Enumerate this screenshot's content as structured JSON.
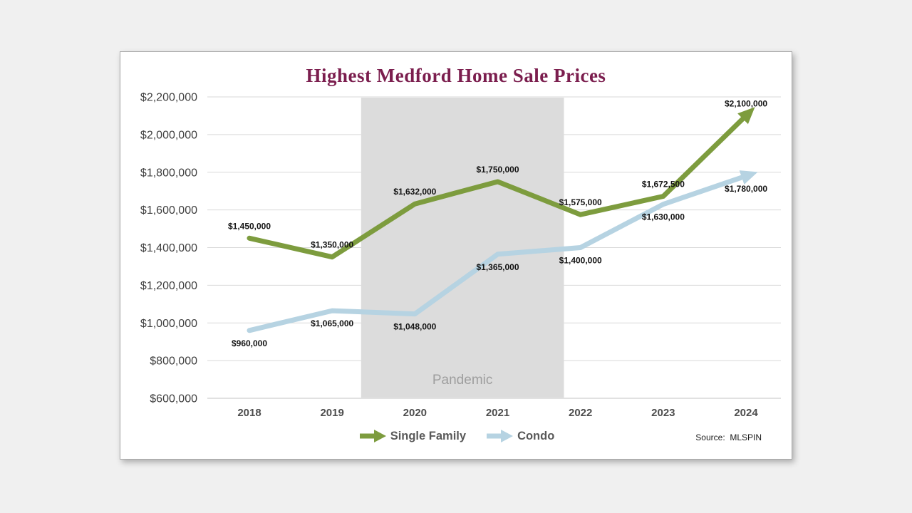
{
  "chart_data": {
    "type": "line",
    "title": "Highest Medford Home Sale Prices",
    "xlabel": "",
    "ylabel": "",
    "x": [
      2018,
      2019,
      2020,
      2021,
      2022,
      2023,
      2024
    ],
    "series": [
      {
        "name": "Single Family",
        "color": "#7d9c3e",
        "values": [
          1450000,
          1350000,
          1632000,
          1750000,
          1575000,
          1672500,
          2100000
        ],
        "labels": [
          "$1,450,000",
          "$1,350,000",
          "$1,632,000",
          "$1,750,000",
          "$1,575,000",
          "$1,672,500",
          "$2,100,000"
        ],
        "label_position": "above"
      },
      {
        "name": "Condo",
        "color": "#b6d3e2",
        "values": [
          960000,
          1065000,
          1048000,
          1365000,
          1400000,
          1630000,
          1780000
        ],
        "labels": [
          "$960,000",
          "$1,065,000",
          "$1,048,000",
          "$1,365,000",
          "$1,400,000",
          "$1,630,000",
          "$1,780,000"
        ],
        "label_position": "below"
      }
    ],
    "ylim": [
      600000,
      2200000
    ],
    "ytick_step": 200000,
    "ytick_labels": [
      "$600,000",
      "$800,000",
      "$1,000,000",
      "$1,200,000",
      "$1,400,000",
      "$1,600,000",
      "$1,800,000",
      "$2,000,000",
      "$2,200,000"
    ],
    "grid": true,
    "legend_position": "bottom",
    "annotations": [
      {
        "type": "band",
        "from_x": 2019.35,
        "to_x": 2021.8,
        "label": "Pandemic",
        "fill": "#dcdcdc"
      }
    ],
    "source": "Source:  MLSPIN"
  }
}
